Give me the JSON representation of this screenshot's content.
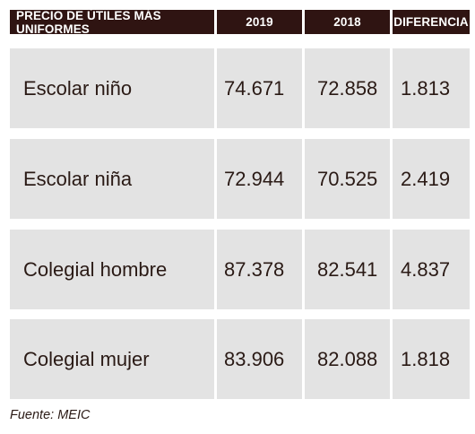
{
  "table": {
    "headers": [
      "PRECIO DE ÚTILES MÁS UNIFORMES",
      "2019",
      "2018",
      "DIFERENCIA"
    ],
    "rows": [
      {
        "label": "Escolar niño",
        "v2019": "74.671",
        "v2018": "72.858",
        "diff": "1.813"
      },
      {
        "label": "Escolar niña",
        "v2019": "72.944",
        "v2018": "70.525",
        "diff": "2.419"
      },
      {
        "label": "Colegial hombre",
        "v2019": "87.378",
        "v2018": "82.541",
        "diff": "4.837"
      },
      {
        "label": "Colegial mujer",
        "v2019": "83.906",
        "v2018": "82.088",
        "diff": "1.818"
      }
    ]
  },
  "source": "Fuente: MEIC",
  "colors": {
    "header_bg": "#2f1412",
    "cell_bg": "#e3e3e3",
    "text": "#2a1a15"
  }
}
